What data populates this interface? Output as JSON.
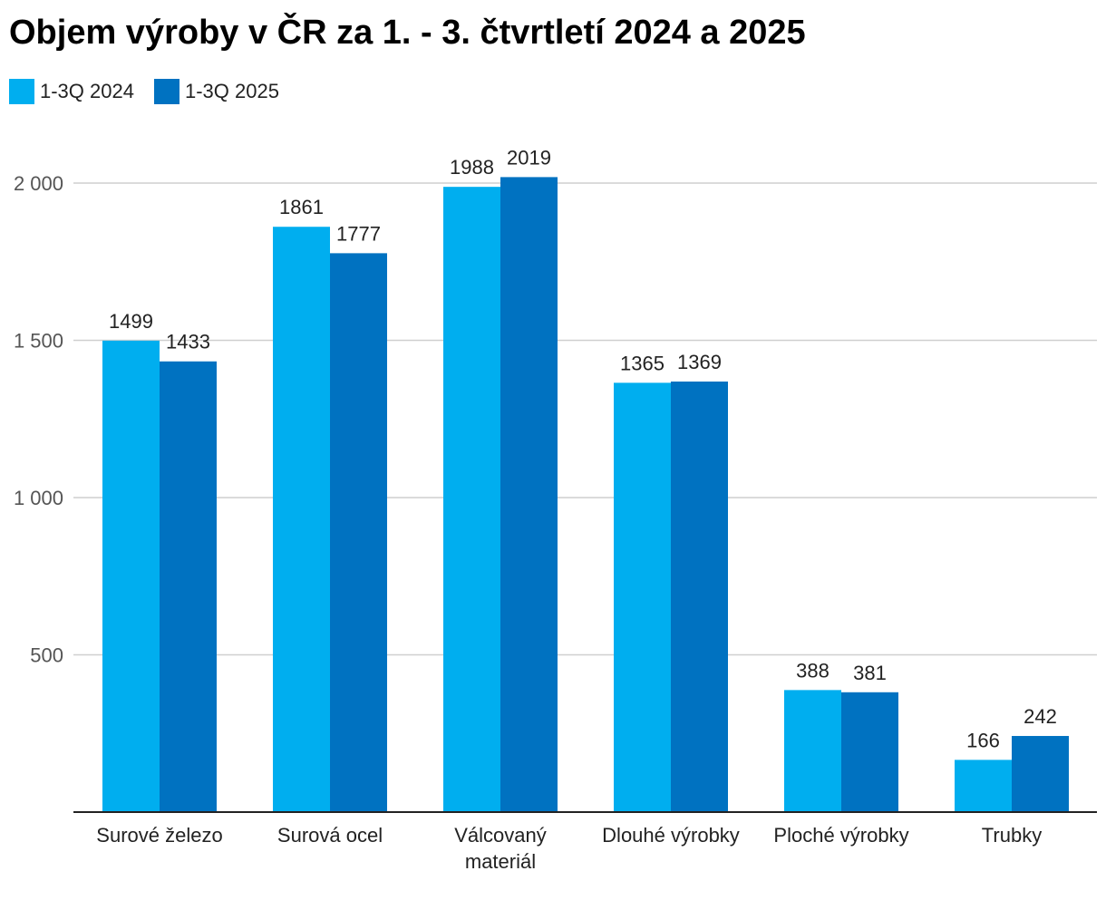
{
  "title": "Objem výroby v ČR za 1. - 3. čtvrtletí 2024 a 2025",
  "colors": {
    "series_2024": "#00AEEF",
    "series_2025": "#0072C1",
    "grid": "#CFCFCF",
    "axis": "#222222"
  },
  "chart_data": {
    "type": "bar",
    "title": "Objem výroby v ČR za 1. - 3. čtvrtletí 2024 a 2025",
    "categories": [
      [
        "Surové železo"
      ],
      [
        "Surová ocel"
      ],
      [
        "Válcovaný",
        "materiál"
      ],
      [
        "Dlouhé výrobky"
      ],
      [
        "Ploché výrobky"
      ],
      [
        "Trubky"
      ]
    ],
    "series": [
      {
        "name": "1-3Q 2024",
        "values": [
          1499,
          1861,
          1988,
          1365,
          388,
          166
        ]
      },
      {
        "name": "1-3Q 2025",
        "values": [
          1433,
          1777,
          2019,
          1369,
          381,
          242
        ]
      }
    ],
    "yticks": [
      "500",
      "1 000",
      "1 500",
      "2 000"
    ],
    "ytick_values": [
      500,
      1000,
      1500,
      2000
    ],
    "ylim": [
      0,
      2000
    ],
    "grid": true,
    "legend": "top-left",
    "xlabel": "",
    "ylabel": ""
  }
}
